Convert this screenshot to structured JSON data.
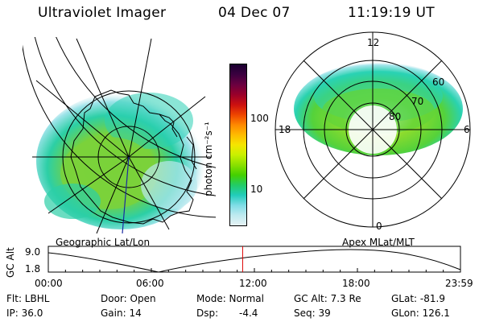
{
  "header": {
    "instrument": "Ultraviolet Imager",
    "date": "04 Dec 07",
    "time": "11:19:19 UT"
  },
  "colorbar": {
    "label": "photon cm⁻²s⁻¹",
    "ticks": [
      "100",
      "10"
    ],
    "colors": [
      "#1a0030",
      "#3b003f",
      "#6a0040",
      "#99002a",
      "#cc1010",
      "#ee4400",
      "#ff8800",
      "#ffbb00",
      "#f5e600",
      "#c8f000",
      "#8ae000",
      "#44d000",
      "#22cc66",
      "#22ccbb",
      "#7fdde6",
      "#bfeaf0",
      "#e6f2f4"
    ]
  },
  "geo_map": {
    "label": "Geographic Lat/Lon"
  },
  "polar_map": {
    "label": "Apex MLat/MLT",
    "mlt_labels": {
      "top": "12",
      "left": "18",
      "right": "6",
      "bottom": "0"
    },
    "lat_labels": [
      "60",
      "70",
      "80"
    ]
  },
  "altitude_plot": {
    "ylabel": "GC Alt",
    "y_ticks": [
      "9.0",
      "1.8"
    ],
    "x_ticks": [
      "00:00",
      "06:00",
      "12:00",
      "18:00",
      "23:59"
    ],
    "marker_time": "11:19",
    "marker_color": "#dd0000"
  },
  "info": {
    "filter": "Flt: LBHL",
    "door": "Door: Open",
    "mode": "Mode: Normal",
    "gc_alt": "GC Alt: 7.3 Re",
    "glat": "GLat: -81.9",
    "ip": "IP: 36.0",
    "gain": "Gain: 14",
    "dsp_label": "Dsp:",
    "dsp_value": "-4.4",
    "seq": "Seq: 39",
    "glon": "GLon: 126.1"
  }
}
